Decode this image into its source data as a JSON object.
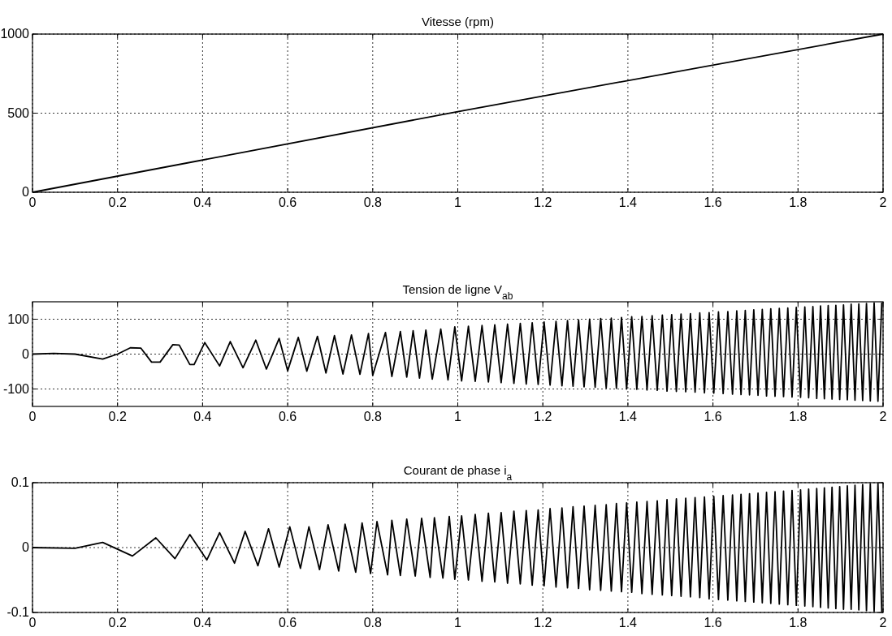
{
  "chart_data": [
    {
      "type": "line",
      "title": "Vitesse (rpm)",
      "x": [
        0,
        1,
        2
      ],
      "xlim": [
        0,
        2
      ],
      "xticks": [
        0,
        0.2,
        0.4,
        0.6,
        0.8,
        1,
        1.2,
        1.4,
        1.6,
        1.8,
        2
      ],
      "ylim": [
        0,
        1000
      ],
      "yticks": [
        0,
        500,
        1000
      ],
      "grid": true,
      "series": [
        {
          "color": "#000000",
          "values": [
            0,
            510,
            1000
          ]
        }
      ]
    },
    {
      "type": "line",
      "title": "Tension de ligne V$_{ab}$",
      "xlim": [
        0,
        2
      ],
      "xticks": [
        0,
        0.2,
        0.4,
        0.6,
        0.8,
        1,
        1.2,
        1.4,
        1.6,
        1.8,
        2
      ],
      "ylim": [
        -150,
        150
      ],
      "yticks": [
        -100,
        0,
        100
      ],
      "grid": true,
      "x": [
        0,
        0.05,
        0.1,
        0.165,
        0.2,
        0.23,
        0.255,
        0.28,
        0.3,
        0.33,
        0.345,
        0.37,
        0.38,
        0.405,
        0.44,
        0.465,
        0.495,
        0.525,
        0.55,
        0.58,
        0.6,
        0.625,
        0.645,
        0.67,
        0.69,
        0.71,
        0.73,
        0.75,
        0.77,
        0.79,
        0.8,
        0.83,
        0.845,
        0.865,
        0.88,
        0.895,
        0.91,
        0.925,
        0.94,
        0.96,
        0.977,
        0.993,
        1.009,
        1.025,
        1.041,
        1.057,
        1.072,
        1.087,
        1.102,
        1.117,
        1.132,
        1.147,
        1.161,
        1.175,
        1.189,
        1.203,
        1.217,
        1.231,
        1.245,
        1.258,
        1.271,
        1.284,
        1.297,
        1.31,
        1.323,
        1.336,
        1.349,
        1.361,
        1.373,
        1.385,
        1.397,
        1.409,
        1.421,
        1.433,
        1.445,
        1.457,
        1.469,
        1.481,
        1.492,
        1.503,
        1.514,
        1.525,
        1.536,
        1.547,
        1.558,
        1.569,
        1.58,
        1.591,
        1.602,
        1.613,
        1.624,
        1.635,
        1.646,
        1.656,
        1.666,
        1.676,
        1.686,
        1.696,
        1.706,
        1.716,
        1.726,
        1.736,
        1.746,
        1.756,
        1.766,
        1.776,
        1.786,
        1.796,
        1.806,
        1.816,
        1.825,
        1.835,
        1.844,
        1.853,
        1.862,
        1.871,
        1.88,
        1.889,
        1.898,
        1.907,
        1.916,
        1.925,
        1.934,
        1.943,
        1.952,
        1.961,
        1.97,
        1.979,
        1.988,
        1.997
      ],
      "series": [
        {
          "color": "#000000",
          "values": [
            0,
            2,
            0,
            -14,
            0,
            18,
            17,
            -23,
            -23,
            27,
            26,
            -30,
            -30,
            33,
            -34,
            36,
            -39,
            40,
            -43,
            45,
            -48,
            48,
            -49,
            51,
            -54,
            53,
            -57,
            55,
            -58,
            59,
            -61,
            62,
            -64,
            65,
            -66,
            67,
            -69,
            69,
            -72,
            72,
            -74,
            78,
            -77,
            80,
            -78,
            82,
            -80,
            84,
            -82,
            86,
            -84,
            88,
            -86,
            90,
            -87,
            92,
            -89,
            94,
            -91,
            96,
            -92,
            98,
            -94,
            100,
            -95,
            102,
            -97,
            103,
            -98,
            105,
            -100,
            107,
            -101,
            108,
            -103,
            110,
            -104,
            112,
            -106,
            113,
            -107,
            115,
            -108,
            116,
            -109,
            118,
            -111,
            119,
            -112,
            121,
            -113,
            122,
            -115,
            124,
            -116,
            125,
            -117,
            127,
            -118,
            128,
            -120,
            130,
            -121,
            131,
            -122,
            132,
            -123,
            134,
            -124,
            135,
            -125,
            136,
            -127,
            138,
            -128,
            139,
            -129,
            140,
            -130,
            141,
            -131,
            143,
            -132,
            144,
            -133,
            145,
            -134,
            147,
            -135,
            148
          ]
        }
      ]
    },
    {
      "type": "line",
      "title": "Courant de phase i$_{a}$",
      "xlim": [
        0,
        2
      ],
      "xticks": [
        0,
        0.2,
        0.4,
        0.6,
        0.8,
        1,
        1.2,
        1.4,
        1.6,
        1.8,
        2
      ],
      "ylim": [
        -0.1,
        0.1
      ],
      "yticks": [
        -0.1,
        0,
        0.1
      ],
      "grid": true,
      "x": [
        0,
        0.1,
        0.165,
        0.235,
        0.29,
        0.335,
        0.37,
        0.41,
        0.44,
        0.475,
        0.5,
        0.53,
        0.555,
        0.58,
        0.605,
        0.63,
        0.65,
        0.675,
        0.695,
        0.72,
        0.735,
        0.76,
        0.775,
        0.795,
        0.81,
        0.835,
        0.845,
        0.865,
        0.88,
        0.9,
        0.915,
        0.935,
        0.945,
        0.965,
        0.98,
        0.993,
        1.009,
        1.025,
        1.041,
        1.057,
        1.072,
        1.087,
        1.102,
        1.117,
        1.132,
        1.147,
        1.161,
        1.175,
        1.189,
        1.203,
        1.217,
        1.231,
        1.245,
        1.258,
        1.271,
        1.284,
        1.297,
        1.31,
        1.323,
        1.336,
        1.349,
        1.361,
        1.373,
        1.385,
        1.397,
        1.409,
        1.421,
        1.433,
        1.445,
        1.457,
        1.469,
        1.481,
        1.492,
        1.503,
        1.514,
        1.525,
        1.536,
        1.547,
        1.558,
        1.569,
        1.58,
        1.591,
        1.602,
        1.613,
        1.624,
        1.635,
        1.646,
        1.656,
        1.666,
        1.676,
        1.686,
        1.696,
        1.706,
        1.716,
        1.726,
        1.736,
        1.746,
        1.756,
        1.766,
        1.776,
        1.786,
        1.796,
        1.806,
        1.816,
        1.825,
        1.835,
        1.844,
        1.853,
        1.862,
        1.871,
        1.88,
        1.889,
        1.898,
        1.907,
        1.916,
        1.925,
        1.934,
        1.943,
        1.952,
        1.961,
        1.97,
        1.979,
        1.988,
        1.997
      ],
      "series": [
        {
          "color": "#000000",
          "values": [
            0,
            -0.001,
            0.008,
            -0.013,
            0.015,
            -0.017,
            0.02,
            -0.019,
            0.023,
            -0.024,
            0.025,
            -0.028,
            0.029,
            -0.03,
            0.032,
            -0.032,
            0.032,
            -0.034,
            0.035,
            -0.036,
            0.036,
            -0.038,
            0.038,
            -0.04,
            0.04,
            -0.042,
            0.042,
            -0.043,
            0.044,
            -0.044,
            0.045,
            -0.046,
            0.046,
            -0.047,
            0.048,
            -0.049,
            0.049,
            -0.05,
            0.051,
            -0.052,
            0.053,
            -0.053,
            0.054,
            -0.055,
            0.056,
            -0.056,
            0.057,
            -0.058,
            0.058,
            -0.059,
            0.06,
            -0.061,
            0.061,
            -0.062,
            0.063,
            -0.063,
            0.064,
            -0.065,
            0.065,
            -0.066,
            0.066,
            -0.067,
            0.068,
            -0.068,
            0.069,
            -0.069,
            0.07,
            -0.071,
            0.071,
            -0.072,
            0.072,
            -0.073,
            0.074,
            -0.074,
            0.075,
            -0.075,
            0.076,
            -0.076,
            0.077,
            -0.077,
            0.078,
            -0.079,
            0.079,
            -0.08,
            0.08,
            -0.081,
            0.081,
            -0.082,
            0.082,
            -0.083,
            0.083,
            -0.084,
            0.084,
            -0.085,
            0.085,
            -0.086,
            0.086,
            -0.087,
            0.087,
            -0.088,
            0.088,
            -0.089,
            0.089,
            -0.09,
            0.09,
            -0.091,
            0.091,
            -0.092,
            0.092,
            -0.093,
            0.093,
            -0.094,
            0.094,
            -0.095,
            0.095,
            -0.095,
            0.096,
            -0.096,
            0.097,
            -0.097,
            0.098,
            -0.098,
            0.099,
            -0.099
          ]
        }
      ]
    }
  ]
}
